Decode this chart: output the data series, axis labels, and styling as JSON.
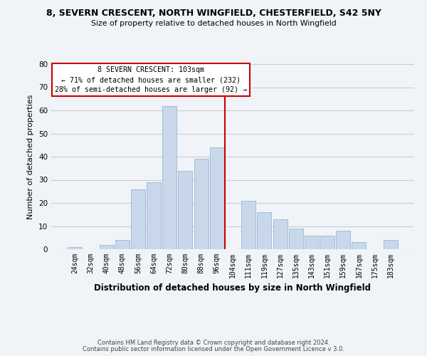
{
  "title": "8, SEVERN CRESCENT, NORTH WINGFIELD, CHESTERFIELD, S42 5NY",
  "subtitle": "Size of property relative to detached houses in North Wingfield",
  "xlabel": "Distribution of detached houses by size in North Wingfield",
  "ylabel": "Number of detached properties",
  "footer_line1": "Contains HM Land Registry data © Crown copyright and database right 2024.",
  "footer_line2": "Contains public sector information licensed under the Open Government Licence v 3.0.",
  "categories": [
    "24sqm",
    "32sqm",
    "40sqm",
    "48sqm",
    "56sqm",
    "64sqm",
    "72sqm",
    "80sqm",
    "88sqm",
    "96sqm",
    "104sqm",
    "111sqm",
    "119sqm",
    "127sqm",
    "135sqm",
    "143sqm",
    "151sqm",
    "159sqm",
    "167sqm",
    "175sqm",
    "183sqm"
  ],
  "values": [
    1,
    0,
    2,
    4,
    26,
    29,
    62,
    34,
    39,
    44,
    0,
    21,
    16,
    13,
    9,
    6,
    6,
    8,
    3,
    0,
    4
  ],
  "bar_color": "#c8d8ea",
  "bar_edge_color": "#9ab8d0",
  "vline_color": "#cc0000",
  "annotation_title": "8 SEVERN CRESCENT: 103sqm",
  "annotation_line1": "← 71% of detached houses are smaller (232)",
  "annotation_line2": "28% of semi-detached houses are larger (92) →",
  "annotation_box_color": "#ffffff",
  "annotation_box_edge_color": "#cc0000",
  "ylim": [
    0,
    80
  ],
  "yticks": [
    0,
    10,
    20,
    30,
    40,
    50,
    60,
    70,
    80
  ],
  "grid_color": "#cccccc",
  "background_color": "#f0f4f8"
}
